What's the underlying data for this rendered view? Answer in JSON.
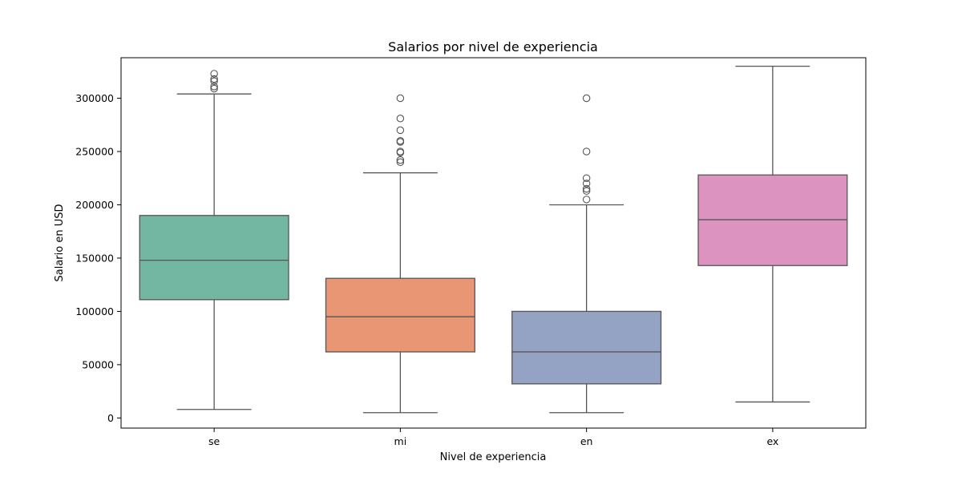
{
  "chart_data": {
    "type": "box",
    "title": "Salarios por nivel de experiencia",
    "xlabel": "Nivel de experiencia",
    "ylabel": "Salario en USD",
    "ylim": [
      -9500,
      338000
    ],
    "yticks": [
      0,
      50000,
      100000,
      150000,
      200000,
      250000,
      300000
    ],
    "ytick_labels": [
      "0",
      "50000",
      "100000",
      "150000",
      "200000",
      "250000",
      "300000"
    ],
    "grid": false,
    "line_color": "#555555",
    "categories": [
      {
        "label": "se",
        "color": "#73b6a1",
        "whisker_low": 8000,
        "q1": 111000,
        "median": 148000,
        "q3": 190000,
        "whisker_high": 304000,
        "outliers": [
          323000,
          318000,
          316000,
          311000,
          309000
        ]
      },
      {
        "label": "mi",
        "color": "#e99675",
        "whisker_low": 5000,
        "q1": 62000,
        "median": 95000,
        "q3": 131000,
        "whisker_high": 230000,
        "outliers": [
          300000,
          281000,
          270000,
          260000,
          259000,
          250000,
          249000,
          242000,
          240000
        ]
      },
      {
        "label": "en",
        "color": "#94a3c4",
        "whisker_low": 5000,
        "q1": 32000,
        "median": 62000,
        "q3": 100000,
        "whisker_high": 200000,
        "outliers": [
          300000,
          250000,
          225000,
          220000,
          215000,
          213000,
          205000
        ]
      },
      {
        "label": "ex",
        "color": "#dc93c0",
        "whisker_low": 15000,
        "q1": 143000,
        "median": 186000,
        "q3": 228000,
        "whisker_high": 330000,
        "outliers": []
      }
    ]
  }
}
